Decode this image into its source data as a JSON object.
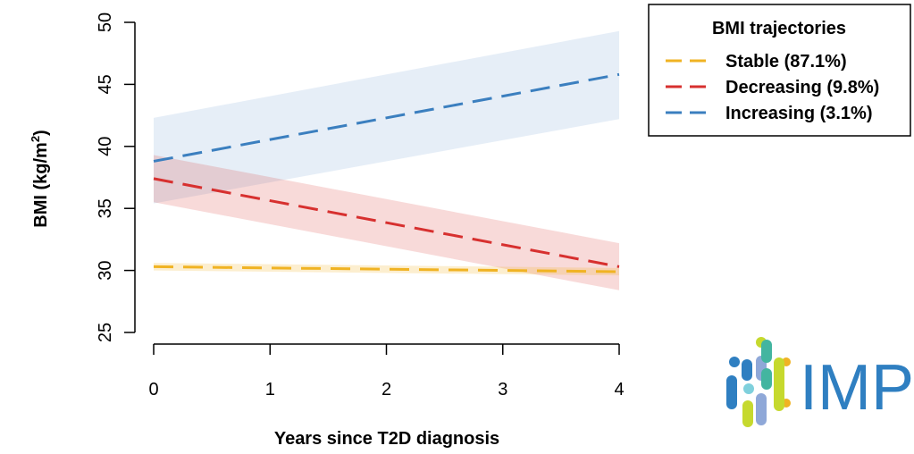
{
  "chart_data": {
    "type": "line",
    "xlabel": "Years since T2D diagnosis",
    "ylabel_main": "BMI (kg/m",
    "ylabel_sup": "2",
    "ylabel_close": ")",
    "xlim": [
      0,
      4
    ],
    "ylim": [
      25,
      50
    ],
    "x_ticks": [
      "0",
      "1",
      "2",
      "3",
      "4"
    ],
    "y_ticks": [
      "25",
      "30",
      "35",
      "40",
      "45",
      "50"
    ],
    "grid": false,
    "legend": {
      "title": "BMI trajectories",
      "placement": "top-right"
    },
    "series": [
      {
        "name": "Stable (87.1%)",
        "color": "#f0b323",
        "x": [
          0,
          4
        ],
        "y": [
          30.3,
          29.9
        ],
        "lower": [
          30.0,
          29.6
        ],
        "upper": [
          30.6,
          30.2
        ]
      },
      {
        "name": "Decreasing (9.8%)",
        "color": "#d7302f",
        "x": [
          0,
          4
        ],
        "y": [
          37.4,
          30.3
        ],
        "lower": [
          35.5,
          28.4
        ],
        "upper": [
          39.3,
          32.2
        ]
      },
      {
        "name": "Increasing (3.1%)",
        "color": "#3b7fbf",
        "x": [
          0,
          4
        ],
        "y": [
          38.8,
          45.8
        ],
        "lower": [
          35.4,
          42.2
        ],
        "upper": [
          42.3,
          49.3
        ]
      }
    ]
  },
  "logo": {
    "text": "IMP"
  }
}
